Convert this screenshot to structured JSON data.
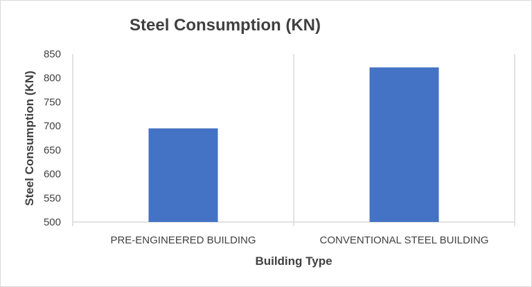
{
  "chart_data": {
    "type": "bar",
    "title": "Steel Consumption (KN)",
    "categories": [
      "PRE-ENGINEERED BUILDING",
      "CONVENTIONAL STEEL BUILDING"
    ],
    "values": [
      695,
      822
    ],
    "xlabel": "Building Type",
    "ylabel": "Steel Consumption (KN)",
    "ylim": [
      500,
      850
    ],
    "yticks": [
      500,
      550,
      600,
      650,
      700,
      750,
      800,
      850
    ],
    "grid": false,
    "bar_color": "#4472C4",
    "axis_color": "#d9d9d9"
  }
}
